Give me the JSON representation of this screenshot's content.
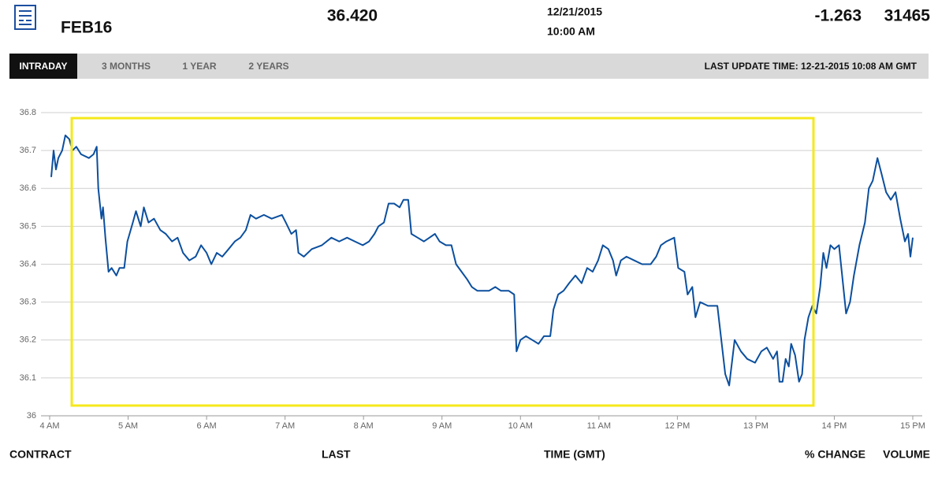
{
  "header": {
    "contract": "FEB16",
    "last": "36.420",
    "date": "12/21/2015",
    "time": "10:00 AM",
    "change": "-1.263",
    "volume": "31465"
  },
  "tabs": [
    "INTRADAY",
    "3 MONTHS",
    "1 YEAR",
    "2 YEARS"
  ],
  "last_update": "LAST UPDATE TIME: 12-21-2015 10:08 AM GMT",
  "footer": [
    "CONTRACT",
    "LAST",
    "TIME (GMT)",
    "% CHANGE",
    "VOLUME"
  ],
  "chart_data": {
    "type": "line",
    "color": "#0b4f9e",
    "grid": true,
    "xlim": [
      4,
      15
    ],
    "xticks": [
      {
        "value": 4,
        "label": "4 AM"
      },
      {
        "value": 5,
        "label": "5 AM"
      },
      {
        "value": 6,
        "label": "6 AM"
      },
      {
        "value": 7,
        "label": "7 AM"
      },
      {
        "value": 8,
        "label": "8 AM"
      },
      {
        "value": 9,
        "label": "9 AM"
      },
      {
        "value": 10,
        "label": "10 AM"
      },
      {
        "value": 11,
        "label": "11 AM"
      },
      {
        "value": 12,
        "label": "12 PM"
      },
      {
        "value": 13,
        "label": "13 PM"
      },
      {
        "value": 14,
        "label": "14 PM"
      },
      {
        "value": 15,
        "label": "15 PM"
      }
    ],
    "ylim": [
      36,
      36.8
    ],
    "yticks": [
      36,
      36.1,
      36.2,
      36.3,
      36.4,
      36.5,
      36.6,
      36.7,
      36.8
    ],
    "x": [
      4.02,
      4.05,
      4.08,
      4.11,
      4.16,
      4.2,
      4.25,
      4.29,
      4.34,
      4.4,
      4.5,
      4.56,
      4.6,
      4.62,
      4.66,
      4.68,
      4.71,
      4.75,
      4.79,
      4.85,
      4.89,
      4.95,
      4.99,
      5.06,
      5.1,
      5.16,
      5.2,
      5.26,
      5.33,
      5.41,
      5.48,
      5.56,
      5.63,
      5.7,
      5.78,
      5.86,
      5.93,
      6.0,
      6.06,
      6.13,
      6.2,
      6.28,
      6.36,
      6.43,
      6.5,
      6.56,
      6.63,
      6.73,
      6.83,
      6.96,
      7.01,
      7.08,
      7.14,
      7.17,
      7.24,
      7.34,
      7.47,
      7.59,
      7.69,
      7.79,
      7.89,
      7.99,
      8.07,
      8.14,
      8.19,
      8.26,
      8.32,
      8.39,
      8.46,
      8.51,
      8.57,
      8.61,
      8.69,
      8.77,
      8.84,
      8.91,
      8.97,
      9.05,
      9.12,
      9.18,
      9.25,
      9.32,
      9.38,
      9.45,
      9.6,
      9.68,
      9.75,
      9.85,
      9.92,
      9.95,
      10.0,
      10.07,
      10.15,
      10.23,
      10.3,
      10.38,
      10.42,
      10.48,
      10.55,
      10.62,
      10.7,
      10.78,
      10.85,
      10.92,
      10.99,
      11.05,
      11.12,
      11.18,
      11.22,
      11.28,
      11.35,
      11.45,
      11.55,
      11.66,
      11.73,
      11.79,
      11.86,
      11.96,
      12.01,
      12.09,
      12.13,
      12.19,
      12.23,
      12.29,
      12.39,
      12.51,
      12.56,
      12.61,
      12.66,
      12.73,
      12.81,
      12.89,
      12.99,
      13.07,
      13.14,
      13.22,
      13.27,
      13.3,
      13.34,
      13.38,
      13.42,
      13.45,
      13.5,
      13.55,
      13.59,
      13.62,
      13.67,
      13.72,
      13.77,
      13.82,
      13.86,
      13.9,
      13.95,
      14.0,
      14.06,
      14.12,
      14.15,
      14.2,
      14.25,
      14.32,
      14.39,
      14.44,
      14.49,
      14.55,
      14.6,
      14.66,
      14.72,
      14.78,
      14.84,
      14.9,
      14.94,
      14.97,
      15.0
    ],
    "values": [
      36.63,
      36.7,
      36.65,
      36.68,
      36.7,
      36.74,
      36.73,
      36.7,
      36.71,
      36.69,
      36.68,
      36.69,
      36.71,
      36.6,
      36.52,
      36.55,
      36.47,
      36.38,
      36.39,
      36.37,
      36.39,
      36.39,
      36.46,
      36.51,
      36.54,
      36.5,
      36.55,
      36.51,
      36.52,
      36.49,
      36.48,
      36.46,
      36.47,
      36.43,
      36.41,
      36.42,
      36.45,
      36.43,
      36.4,
      36.43,
      36.42,
      36.44,
      36.46,
      36.47,
      36.49,
      36.53,
      36.52,
      36.53,
      36.52,
      36.53,
      36.51,
      36.48,
      36.49,
      36.43,
      36.42,
      36.44,
      36.45,
      36.47,
      36.46,
      36.47,
      36.46,
      36.45,
      36.46,
      36.48,
      36.5,
      36.51,
      36.56,
      36.56,
      36.55,
      36.57,
      36.57,
      36.48,
      36.47,
      36.46,
      36.47,
      36.48,
      36.46,
      36.45,
      36.45,
      36.4,
      36.38,
      36.36,
      36.34,
      36.33,
      36.33,
      36.34,
      36.33,
      36.33,
      36.32,
      36.17,
      36.2,
      36.21,
      36.2,
      36.19,
      36.21,
      36.21,
      36.28,
      36.32,
      36.33,
      36.35,
      36.37,
      36.35,
      36.39,
      36.38,
      36.41,
      36.45,
      36.44,
      36.41,
      36.37,
      36.41,
      36.42,
      36.41,
      36.4,
      36.4,
      36.42,
      36.45,
      36.46,
      36.47,
      36.39,
      36.38,
      36.32,
      36.34,
      36.26,
      36.3,
      36.29,
      36.29,
      36.2,
      36.11,
      36.08,
      36.2,
      36.17,
      36.15,
      36.14,
      36.17,
      36.18,
      36.15,
      36.17,
      36.09,
      36.09,
      36.15,
      36.13,
      36.19,
      36.16,
      36.09,
      36.11,
      36.2,
      36.26,
      36.29,
      36.27,
      36.34,
      36.43,
      36.39,
      36.45,
      36.44,
      36.45,
      36.33,
      36.27,
      36.3,
      36.37,
      36.45,
      36.51,
      36.6,
      36.62,
      36.68,
      36.64,
      36.59,
      36.57,
      36.59,
      36.52,
      36.46,
      36.48,
      36.42,
      36.47
    ]
  }
}
